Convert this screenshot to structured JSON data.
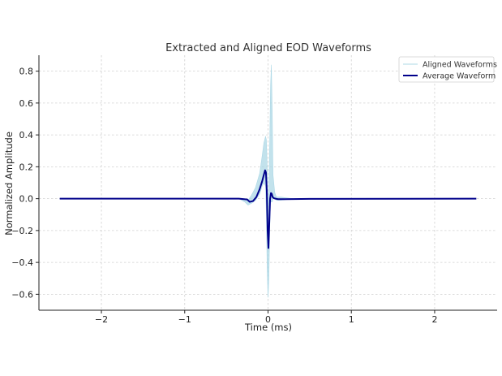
{
  "chart_data": {
    "type": "line",
    "title": "Extracted and Aligned EOD Waveforms",
    "xlabel": "Time (ms)",
    "ylabel": "Normalized Amplitude",
    "xlim": [
      -2.75,
      2.75
    ],
    "ylim": [
      -0.7,
      0.9
    ],
    "xticks": [
      -2,
      -1,
      0,
      1,
      2
    ],
    "xtick_labels": [
      "−2",
      "−1",
      "0",
      "1",
      "2"
    ],
    "yticks": [
      -0.6,
      -0.4,
      -0.2,
      0.0,
      0.2,
      0.4,
      0.6,
      0.8
    ],
    "ytick_labels": [
      "−0.6",
      "−0.4",
      "−0.2",
      "0.0",
      "0.2",
      "0.4",
      "0.6",
      "0.8"
    ],
    "grid": true,
    "legend": {
      "position": "top-right",
      "entries": [
        "Aligned Waveforms",
        "Average Waveform"
      ]
    },
    "series": [
      {
        "name": "Aligned Waveforms",
        "color": "#add8e6",
        "style": "band",
        "x": [
          -2.5,
          -0.35,
          -0.28,
          -0.24,
          -0.2,
          -0.15,
          -0.1,
          -0.07,
          -0.05,
          -0.03,
          -0.02,
          -0.01,
          0.0,
          0.01,
          0.02,
          0.03,
          0.04,
          0.05,
          0.06,
          0.08,
          0.1,
          0.15,
          0.3,
          0.6,
          2.5
        ],
        "upper": [
          0.0,
          0.0,
          0.0,
          -0.01,
          0.02,
          0.07,
          0.16,
          0.27,
          0.35,
          0.39,
          0.37,
          0.2,
          -0.05,
          0.05,
          0.35,
          0.7,
          0.84,
          0.55,
          0.15,
          0.04,
          0.01,
          0.01,
          0.0,
          0.0,
          0.0
        ],
        "lower": [
          0.0,
          0.0,
          -0.02,
          -0.04,
          -0.03,
          -0.01,
          0.03,
          0.08,
          0.1,
          0.08,
          -0.1,
          -0.45,
          -0.62,
          -0.5,
          -0.2,
          -0.02,
          -0.02,
          -0.02,
          0.0,
          0.0,
          -0.01,
          -0.01,
          0.0,
          0.0,
          0.0
        ]
      },
      {
        "name": "Average Waveform",
        "color": "#00008b",
        "style": "line",
        "x": [
          -2.5,
          -0.35,
          -0.25,
          -0.22,
          -0.18,
          -0.14,
          -0.1,
          -0.07,
          -0.05,
          -0.035,
          -0.025,
          -0.015,
          -0.005,
          0.005,
          0.015,
          0.025,
          0.035,
          0.045,
          0.055,
          0.07,
          0.09,
          0.12,
          0.2,
          0.5,
          2.5
        ],
        "y": [
          0.0,
          0.0,
          -0.005,
          -0.02,
          -0.015,
          0.01,
          0.06,
          0.11,
          0.15,
          0.178,
          0.165,
          0.05,
          -0.2,
          -0.31,
          -0.15,
          0.0,
          0.035,
          0.03,
          0.01,
          0.003,
          0.0,
          -0.003,
          -0.003,
          -0.001,
          0.0
        ]
      }
    ]
  }
}
